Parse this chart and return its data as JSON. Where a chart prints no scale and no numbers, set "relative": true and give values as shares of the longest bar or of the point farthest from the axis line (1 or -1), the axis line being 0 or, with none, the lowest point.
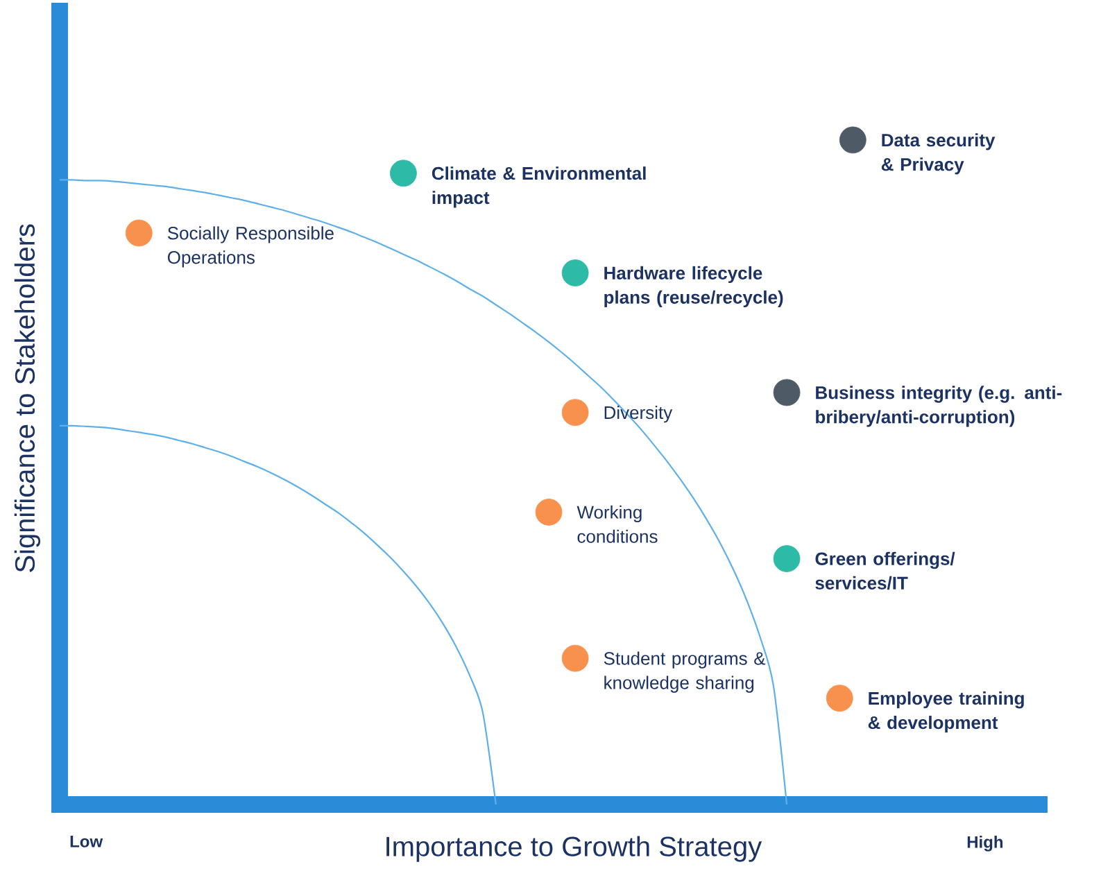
{
  "chart_data": {
    "type": "scatter",
    "relative": true,
    "xlabel": "Importance to Growth Strategy",
    "ylabel": "Significance to Stakeholders",
    "marker": "circle",
    "categories": [
      null,
      null,
      "Low",
      null,
      null,
      null,
      null,
      null,
      null,
      null,
      null,
      null,
      null,
      null,
      null,
      null,
      null,
      null,
      null,
      null,
      null,
      null,
      null,
      null,
      null,
      null,
      null,
      null,
      null,
      null,
      null,
      null,
      null,
      null,
      null,
      null,
      null,
      null,
      null,
      null,
      null,
      null,
      null,
      null,
      null,
      null,
      null,
      null,
      null,
      null,
      null,
      null,
      null,
      null,
      null,
      null,
      null,
      null,
      null,
      null,
      null,
      null,
      null,
      null,
      null,
      null,
      null,
      null,
      null,
      null,
      "High"
    ],
    "series": [
      {
        "type": "line",
        "marker": "none",
        "color": "#5fb0ea",
        "values": [
          0.57,
          0.57,
          0.569,
          0.568,
          0.566,
          0.563,
          0.56,
          0.557,
          0.553,
          0.548,
          0.543,
          0.537,
          0.531,
          0.524,
          0.516,
          0.508,
          0.499,
          0.489,
          0.478,
          0.466,
          0.453,
          0.44,
          0.425,
          0.409,
          0.391,
          0.372,
          0.351,
          0.328,
          0.302,
          0.272,
          0.237,
          0.195,
          0.139,
          0,
          null,
          null,
          null,
          null,
          null,
          null,
          null,
          null,
          null,
          null,
          null,
          null,
          null,
          null,
          null,
          null,
          null,
          null,
          null,
          null,
          null,
          null,
          null,
          null,
          null,
          null,
          null,
          null,
          null,
          null,
          null,
          null,
          null,
          null,
          null,
          null,
          null
        ]
      },
      {
        "type": "line",
        "marker": "none",
        "color": "#5fb0ea",
        "values": [
          0.94,
          0.94,
          0.939,
          0.939,
          0.938,
          0.936,
          0.934,
          0.932,
          0.93,
          0.927,
          0.924,
          0.921,
          0.917,
          0.913,
          0.909,
          0.904,
          0.899,
          0.894,
          0.888,
          0.882,
          0.876,
          0.869,
          0.862,
          0.854,
          0.846,
          0.837,
          0.828,
          0.819,
          0.809,
          0.799,
          0.788,
          0.776,
          0.765,
          0.752,
          0.739,
          0.725,
          0.711,
          0.696,
          0.68,
          0.663,
          0.645,
          0.627,
          0.607,
          0.586,
          0.564,
          0.54,
          0.515,
          0.488,
          0.459,
          0.427,
          0.392,
          0.352,
          0.306,
          0.251,
          0.178,
          0,
          null,
          null,
          null,
          null,
          null,
          null,
          null,
          null,
          null,
          null,
          null,
          null,
          null,
          null,
          null
        ]
      },
      {
        "name": "Socially Responsible\nOperations",
        "color": "#f8914e",
        "values": [
          null,
          null,
          null,
          null,
          null,
          null,
          0.86,
          null,
          null,
          null,
          null,
          null,
          null,
          null,
          null,
          null,
          null,
          null,
          null,
          null,
          null,
          null,
          null,
          null,
          null,
          null,
          null,
          null,
          null,
          null,
          null,
          null,
          null,
          null,
          null,
          null,
          null,
          null,
          null,
          null,
          null,
          null,
          null,
          null,
          null,
          null,
          null,
          null,
          null,
          null,
          null,
          null,
          null,
          null,
          null,
          null,
          null,
          null,
          null,
          null,
          null,
          null,
          null,
          null,
          null,
          null,
          null,
          null,
          null,
          null,
          null
        ]
      },
      {
        "name": "**Climate & Environmental\nimpact**",
        "color": "#2dbaa6",
        "values": [
          null,
          null,
          null,
          null,
          null,
          null,
          null,
          null,
          null,
          null,
          null,
          null,
          null,
          null,
          null,
          null,
          null,
          null,
          null,
          null,
          null,
          null,
          null,
          null,
          null,
          null,
          0.95,
          null,
          null,
          null,
          null,
          null,
          null,
          null,
          null,
          null,
          null,
          null,
          null,
          null,
          null,
          null,
          null,
          null,
          null,
          null,
          null,
          null,
          null,
          null,
          null,
          null,
          null,
          null,
          null,
          null,
          null,
          null,
          null,
          null,
          null,
          null,
          null,
          null,
          null,
          null,
          null,
          null,
          null,
          null,
          null
        ]
      },
      {
        "name": "**Hardware lifecycle\nplans (reuse/recycle)**",
        "color": "#2dbaa6",
        "values": [
          null,
          null,
          null,
          null,
          null,
          null,
          null,
          null,
          null,
          null,
          null,
          null,
          null,
          null,
          null,
          null,
          null,
          null,
          null,
          null,
          null,
          null,
          null,
          null,
          null,
          null,
          null,
          null,
          null,
          null,
          null,
          null,
          null,
          null,
          null,
          null,
          null,
          null,
          null,
          0.8,
          null,
          null,
          null,
          null,
          null,
          null,
          null,
          null,
          null,
          null,
          null,
          null,
          null,
          null,
          null,
          null,
          null,
          null,
          null,
          null,
          null,
          null,
          null,
          null,
          null,
          null,
          null,
          null,
          null,
          null,
          null
        ]
      },
      {
        "name": "**Data security\n& Privacy**",
        "color": "#4e5a66",
        "values": [
          null,
          null,
          null,
          null,
          null,
          null,
          null,
          null,
          null,
          null,
          null,
          null,
          null,
          null,
          null,
          null,
          null,
          null,
          null,
          null,
          null,
          null,
          null,
          null,
          null,
          null,
          null,
          null,
          null,
          null,
          null,
          null,
          null,
          null,
          null,
          null,
          null,
          null,
          null,
          null,
          null,
          null,
          null,
          null,
          null,
          null,
          null,
          null,
          null,
          null,
          null,
          null,
          null,
          null,
          null,
          null,
          null,
          null,
          null,
          null,
          1,
          null,
          null,
          null,
          null,
          null,
          null,
          null,
          null,
          null,
          null
        ]
      },
      {
        "name": "Diversity",
        "color": "#f8914e",
        "values": [
          null,
          null,
          null,
          null,
          null,
          null,
          null,
          null,
          null,
          null,
          null,
          null,
          null,
          null,
          null,
          null,
          null,
          null,
          null,
          null,
          null,
          null,
          null,
          null,
          null,
          null,
          null,
          null,
          null,
          null,
          null,
          null,
          null,
          null,
          null,
          null,
          null,
          null,
          null,
          0.59,
          null,
          null,
          null,
          null,
          null,
          null,
          null,
          null,
          null,
          null,
          null,
          null,
          null,
          null,
          null,
          null,
          null,
          null,
          null,
          null,
          null,
          null,
          null,
          null,
          null,
          null,
          null,
          null,
          null,
          null,
          null
        ]
      },
      {
        "name": "**Business integrity (e.g. anti-\nbribery/anti-corruption)**",
        "color": "#4e5a66",
        "values": [
          null,
          null,
          null,
          null,
          null,
          null,
          null,
          null,
          null,
          null,
          null,
          null,
          null,
          null,
          null,
          null,
          null,
          null,
          null,
          null,
          null,
          null,
          null,
          null,
          null,
          null,
          null,
          null,
          null,
          null,
          null,
          null,
          null,
          null,
          null,
          null,
          null,
          null,
          null,
          null,
          null,
          null,
          null,
          null,
          null,
          null,
          null,
          null,
          null,
          null,
          null,
          null,
          null,
          null,
          null,
          0.62,
          null,
          null,
          null,
          null,
          null,
          null,
          null,
          null,
          null,
          null,
          null,
          null,
          null,
          null,
          null
        ]
      },
      {
        "name": "Working\nconditions",
        "color": "#f8914e",
        "values": [
          null,
          null,
          null,
          null,
          null,
          null,
          null,
          null,
          null,
          null,
          null,
          null,
          null,
          null,
          null,
          null,
          null,
          null,
          null,
          null,
          null,
          null,
          null,
          null,
          null,
          null,
          null,
          null,
          null,
          null,
          null,
          null,
          null,
          null,
          null,
          null,
          null,
          0.44,
          null,
          null,
          null,
          null,
          null,
          null,
          null,
          null,
          null,
          null,
          null,
          null,
          null,
          null,
          null,
          null,
          null,
          null,
          null,
          null,
          null,
          null,
          null,
          null,
          null,
          null,
          null,
          null,
          null,
          null,
          null,
          null,
          null
        ]
      },
      {
        "name": "**Green offerings/\nservices/IT**",
        "color": "#2dbaa6",
        "values": [
          null,
          null,
          null,
          null,
          null,
          null,
          null,
          null,
          null,
          null,
          null,
          null,
          null,
          null,
          null,
          null,
          null,
          null,
          null,
          null,
          null,
          null,
          null,
          null,
          null,
          null,
          null,
          null,
          null,
          null,
          null,
          null,
          null,
          null,
          null,
          null,
          null,
          null,
          null,
          null,
          null,
          null,
          null,
          null,
          null,
          null,
          null,
          null,
          null,
          null,
          null,
          null,
          null,
          null,
          null,
          0.37,
          null,
          null,
          null,
          null,
          null,
          null,
          null,
          null,
          null,
          null,
          null,
          null,
          null,
          null,
          null
        ]
      },
      {
        "name": "Student programs &\nknowledge sharing",
        "color": "#f8914e",
        "values": [
          null,
          null,
          null,
          null,
          null,
          null,
          null,
          null,
          null,
          null,
          null,
          null,
          null,
          null,
          null,
          null,
          null,
          null,
          null,
          null,
          null,
          null,
          null,
          null,
          null,
          null,
          null,
          null,
          null,
          null,
          null,
          null,
          null,
          null,
          null,
          null,
          null,
          null,
          null,
          0.22,
          null,
          null,
          null,
          null,
          null,
          null,
          null,
          null,
          null,
          null,
          null,
          null,
          null,
          null,
          null,
          null,
          null,
          null,
          null,
          null,
          null,
          null,
          null,
          null,
          null,
          null,
          null,
          null,
          null,
          null,
          null
        ]
      },
      {
        "name": "**Employee training\n& development**",
        "color": "#f8914e",
        "values": [
          null,
          null,
          null,
          null,
          null,
          null,
          null,
          null,
          null,
          null,
          null,
          null,
          null,
          null,
          null,
          null,
          null,
          null,
          null,
          null,
          null,
          null,
          null,
          null,
          null,
          null,
          null,
          null,
          null,
          null,
          null,
          null,
          null,
          null,
          null,
          null,
          null,
          null,
          null,
          null,
          null,
          null,
          null,
          null,
          null,
          null,
          null,
          null,
          null,
          null,
          null,
          null,
          null,
          null,
          null,
          null,
          null,
          null,
          null,
          0.16,
          null,
          null,
          null,
          null,
          null,
          null,
          null,
          null,
          null,
          null,
          null
        ]
      }
    ]
  }
}
